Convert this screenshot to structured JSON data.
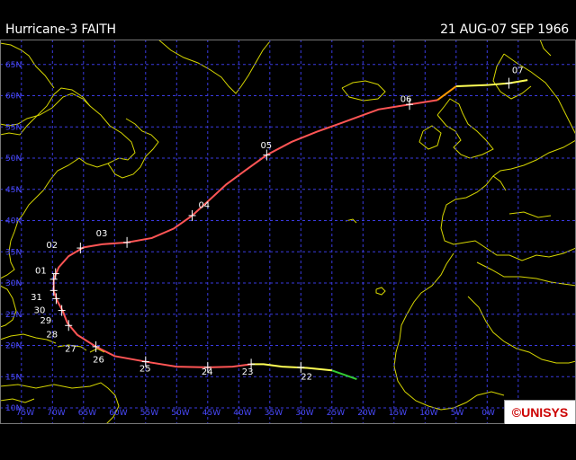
{
  "header": {
    "title": "Hurricane-3 FAITH",
    "date_range": "21 AUG-07 SEP 1966"
  },
  "logo": {
    "text": "©UNISYS",
    "color": "#cc0000"
  },
  "colors": {
    "background": "#000000",
    "grid": "#3a3ae0",
    "coastline": "#d6d600",
    "hurricane": "#ff5555",
    "tropical_storm": "#ffff55",
    "depression": "#33cc33",
    "extratropical": "#ff9900",
    "axis_label": "#4a4aff"
  },
  "axes": {
    "longitude_labels": [
      "75W",
      "70W",
      "65W",
      "60W",
      "55W",
      "50W",
      "45W",
      "40W",
      "35W",
      "30W",
      "25W",
      "20W",
      "15W",
      "10W",
      "5W",
      "0W"
    ],
    "latitude_labels": [
      "65N",
      "60N",
      "55N",
      "50N",
      "45N",
      "40N",
      "35N",
      "30N",
      "25N",
      "20N",
      "15N",
      "10N"
    ]
  },
  "track": {
    "segments": [
      {
        "status": "depression",
        "points": [
          [
            -21,
            14.6
          ],
          [
            -25,
            16.0
          ]
        ]
      },
      {
        "status": "tropical_storm",
        "points": [
          [
            -25,
            16.0
          ],
          [
            -29,
            16.4
          ],
          [
            -33,
            16.6
          ],
          [
            -36,
            17.0
          ],
          [
            -38,
            17.0
          ]
        ]
      },
      {
        "status": "hurricane",
        "points": [
          [
            -38,
            17.0
          ],
          [
            -41,
            16.6
          ],
          [
            -45,
            16.5
          ],
          [
            -50,
            16.6
          ],
          [
            -55,
            17.4
          ],
          [
            -60,
            18.3
          ],
          [
            -63,
            19.8
          ],
          [
            -66,
            21.7
          ],
          [
            -67.6,
            23.6
          ],
          [
            -68.3,
            25.4
          ],
          [
            -69.2,
            27.1
          ],
          [
            -69.8,
            28.7
          ],
          [
            -69.8,
            30.6
          ],
          [
            -69.0,
            32.5
          ],
          [
            -67.4,
            34.3
          ],
          [
            -65.0,
            35.7
          ],
          [
            -62.0,
            36.2
          ],
          [
            -58.0,
            36.5
          ],
          [
            -54.0,
            37.2
          ],
          [
            -50.5,
            38.7
          ],
          [
            -47.5,
            40.8
          ],
          [
            -44.5,
            43.5
          ],
          [
            -42.0,
            45.8
          ],
          [
            -39.0,
            48.0
          ],
          [
            -35.5,
            50.5
          ],
          [
            -31.5,
            52.6
          ],
          [
            -27.5,
            54.2
          ],
          [
            -23.0,
            55.8
          ],
          [
            -17.5,
            57.8
          ],
          [
            -12.5,
            58.6
          ],
          [
            -8.0,
            59.3
          ]
        ]
      },
      {
        "status": "extratropical",
        "points": [
          [
            -8.0,
            59.3
          ],
          [
            -5.0,
            61.5
          ]
        ]
      },
      {
        "status": "tropical_storm",
        "points": [
          [
            -5.0,
            61.5
          ],
          [
            0,
            61.7
          ],
          [
            3.5,
            62.0
          ],
          [
            6.5,
            62.5
          ]
        ]
      }
    ],
    "day_labels": [
      {
        "label": "22",
        "lon": -30.0,
        "lat": 14.5
      },
      {
        "label": "23",
        "lon": -39.5,
        "lat": 15.3
      },
      {
        "label": "24",
        "lon": -46.0,
        "lat": 15.3
      },
      {
        "label": "25",
        "lon": -56.0,
        "lat": 15.8
      },
      {
        "label": "26",
        "lon": -63.5,
        "lat": 17.3
      },
      {
        "label": "27",
        "lon": -68.0,
        "lat": 19.0
      },
      {
        "label": "28",
        "lon": -71.0,
        "lat": 21.3
      },
      {
        "label": "29",
        "lon": -72.0,
        "lat": 23.5
      },
      {
        "label": "30",
        "lon": -73.0,
        "lat": 25.2
      },
      {
        "label": "31",
        "lon": -73.5,
        "lat": 27.3
      },
      {
        "label": "01",
        "lon": -72.8,
        "lat": 31.5
      },
      {
        "label": "02",
        "lon": -71.0,
        "lat": 35.6
      },
      {
        "label": "03",
        "lon": -63.0,
        "lat": 37.5
      },
      {
        "label": "04",
        "lon": -46.5,
        "lat": 42.0
      },
      {
        "label": "05",
        "lon": -36.5,
        "lat": 51.6
      },
      {
        "label": "06",
        "lon": -14.0,
        "lat": 59.0
      },
      {
        "label": "07",
        "lon": 4.0,
        "lat": 63.6
      }
    ],
    "day_markers": [
      [
        -30.0,
        16.5
      ],
      [
        -38.0,
        17.0
      ],
      [
        -45.0,
        16.5
      ],
      [
        -55.0,
        17.4
      ],
      [
        -63.0,
        19.8
      ],
      [
        -67.4,
        23.2
      ],
      [
        -68.5,
        25.6
      ],
      [
        -69.4,
        27.5
      ],
      [
        -69.8,
        28.8
      ],
      [
        -69.8,
        30.6
      ],
      [
        -69.5,
        31.5
      ],
      [
        -65.5,
        35.6
      ],
      [
        -58.0,
        36.5
      ],
      [
        -47.5,
        40.8
      ],
      [
        -35.5,
        50.5
      ],
      [
        -12.5,
        58.6
      ],
      [
        3.5,
        62.0
      ]
    ]
  }
}
